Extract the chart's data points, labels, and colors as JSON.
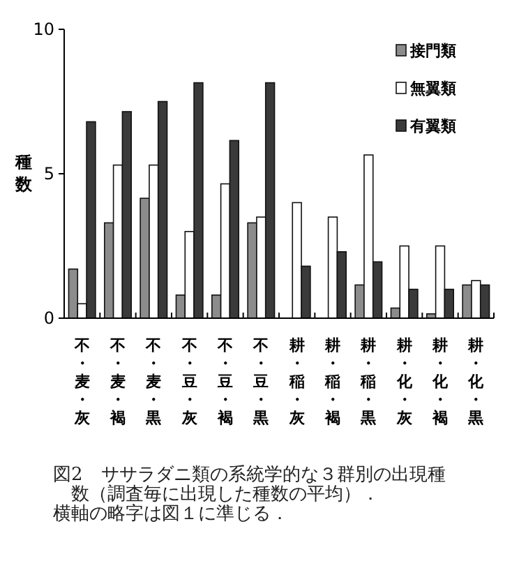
{
  "chart_data": {
    "type": "bar",
    "ylabel": "種数",
    "categories": [
      "不・麦・灰",
      "不・麦・褐",
      "不・麦・黒",
      "不・豆・灰",
      "不・豆・褐",
      "不・豆・黒",
      "耕・稲・灰",
      "耕・稲・褐",
      "耕・稲・黒",
      "耕・化・灰",
      "耕・化・褐",
      "耕・化・黒"
    ],
    "series": [
      {
        "name": "接門類",
        "color": "#8c8c8c",
        "values": [
          1.7,
          3.3,
          4.15,
          0.8,
          0.8,
          3.3,
          0,
          0,
          1.15,
          0.35,
          0.15,
          1.15
        ]
      },
      {
        "name": "無翼類",
        "color": "#ffffff",
        "values": [
          0.5,
          5.3,
          5.3,
          3.0,
          4.65,
          3.5,
          4.0,
          3.5,
          5.65,
          2.5,
          2.5,
          1.3
        ]
      },
      {
        "name": "有翼類",
        "color": "#3a3a3a",
        "values": [
          6.8,
          7.15,
          7.5,
          8.15,
          6.15,
          8.15,
          1.8,
          2.3,
          1.95,
          1.0,
          1.0,
          1.15
        ]
      }
    ],
    "ylim": [
      0,
      10
    ],
    "yticks": [
      0,
      5,
      10
    ],
    "legend": "top right",
    "annotations": [
      "図2　ササラダニ類の系統学的な３群別の出現種数（調査毎に出現した種数の平均）．",
      "横軸の略字は図１に準じる．"
    ]
  }
}
